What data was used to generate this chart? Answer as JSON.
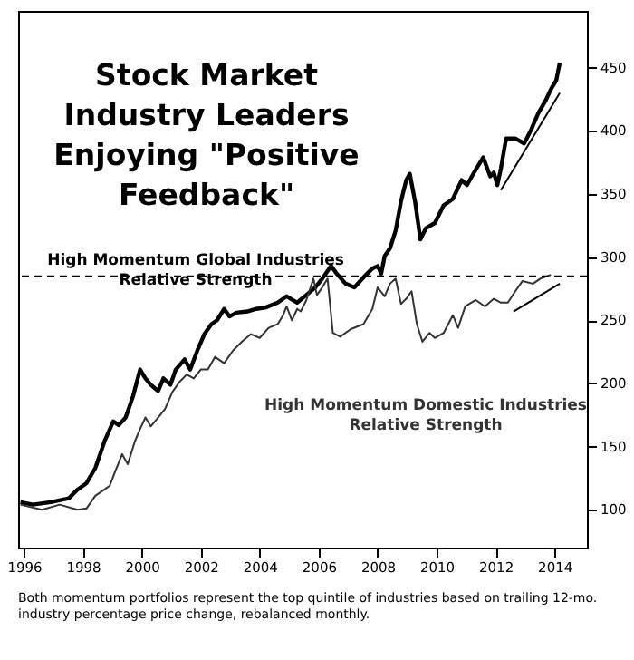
{
  "chart_data": {
    "type": "line",
    "title": "Stock Market\nIndustry Leaders\nEnjoying \"Positive\nFeedback\"",
    "annotations": [
      "Both momentum portfolios represent the top quintile of industries based on trailing 12-mo. industry percentage price change, rebalanced monthly."
    ],
    "xlim": [
      1995.8,
      2015.1
    ],
    "xticks": [
      1996,
      1998,
      2000,
      2002,
      2004,
      2006,
      2008,
      2010,
      2012,
      2014
    ],
    "ylim": [
      70,
      495
    ],
    "yticks": [
      100,
      150,
      200,
      250,
      300,
      350,
      400,
      450
    ],
    "grid": false,
    "marker": "none",
    "line_style": "solid",
    "ref_lines": [
      {
        "axis": "y",
        "value": 285,
        "color": "#000000",
        "line_style": "dashed"
      }
    ],
    "series": [
      {
        "name": "High Momentum Global Industries\nRelative Strength",
        "color": "#000000",
        "x": [
          1995.88,
          1996.3,
          1996.91,
          1997.52,
          1997.82,
          1998.12,
          1998.42,
          1998.73,
          1999.03,
          1999.21,
          1999.45,
          1999.7,
          1999.94,
          2000.12,
          2000.3,
          2000.55,
          2000.73,
          2000.97,
          2001.15,
          2001.45,
          2001.64,
          2001.88,
          2002.12,
          2002.36,
          2002.55,
          2002.79,
          2002.97,
          2003.21,
          2003.58,
          2003.88,
          2004.18,
          2004.61,
          2004.91,
          2005.27,
          2005.58,
          2005.88,
          2006.12,
          2006.42,
          2006.61,
          2006.91,
          2007.21,
          2007.52,
          2007.82,
          2008.0,
          2008.12,
          2008.24,
          2008.42,
          2008.61,
          2008.79,
          2008.97,
          2009.09,
          2009.27,
          2009.45,
          2009.64,
          2009.94,
          2010.24,
          2010.55,
          2010.85,
          2011.03,
          2011.27,
          2011.58,
          2011.82,
          2011.94,
          2012.06,
          2012.18,
          2012.36,
          2012.67,
          2012.97,
          2013.21,
          2013.45,
          2013.7,
          2013.88,
          2014.06,
          2014.18
        ],
        "values": [
          106,
          104,
          106,
          109,
          116,
          121,
          133,
          154,
          170,
          167,
          173,
          190,
          211,
          204,
          199,
          194,
          204,
          199,
          211,
          219,
          211,
          226,
          239,
          247,
          250,
          259,
          253,
          256,
          257,
          259,
          260,
          264,
          269,
          264,
          270,
          276,
          283,
          293,
          287,
          279,
          276,
          284,
          291,
          293,
          287,
          301,
          307,
          321,
          344,
          361,
          366,
          344,
          314,
          323,
          327,
          341,
          346,
          361,
          357,
          367,
          379,
          364,
          367,
          357,
          370,
          394,
          394,
          390,
          401,
          414,
          424,
          433,
          440,
          454
        ]
      },
      {
        "name": "High Momentum Domestic Industries\nRelative Strength",
        "color": "#333333",
        "x": [
          1995.88,
          1996.61,
          1997.21,
          1997.82,
          1998.12,
          1998.42,
          1998.73,
          1998.91,
          1999.09,
          1999.33,
          1999.52,
          1999.76,
          1999.94,
          2000.12,
          2000.3,
          2000.55,
          2000.79,
          2001.03,
          2001.27,
          2001.52,
          2001.76,
          2002.0,
          2002.24,
          2002.48,
          2002.79,
          2003.09,
          2003.39,
          2003.7,
          2004.0,
          2004.3,
          2004.61,
          2004.79,
          2004.91,
          2005.09,
          2005.27,
          2005.39,
          2005.58,
          2005.82,
          2005.94,
          2006.12,
          2006.3,
          2006.48,
          2006.73,
          2007.09,
          2007.52,
          2007.82,
          2008.0,
          2008.24,
          2008.42,
          2008.61,
          2008.79,
          2008.97,
          2009.15,
          2009.33,
          2009.52,
          2009.76,
          2009.94,
          2010.24,
          2010.55,
          2010.73,
          2010.97,
          2011.33,
          2011.64,
          2011.94,
          2012.18,
          2012.42,
          2012.67,
          2012.91,
          2013.27,
          2013.52,
          2013.88
        ],
        "values": [
          104,
          100,
          104,
          100,
          101,
          111,
          116,
          119,
          130,
          144,
          136,
          154,
          164,
          173,
          166,
          173,
          180,
          193,
          201,
          207,
          204,
          211,
          211,
          221,
          216,
          226,
          233,
          239,
          236,
          244,
          247,
          254,
          261,
          250,
          259,
          257,
          266,
          283,
          270,
          276,
          283,
          240,
          237,
          243,
          247,
          259,
          276,
          269,
          279,
          283,
          263,
          267,
          273,
          247,
          233,
          240,
          236,
          240,
          254,
          244,
          261,
          266,
          261,
          267,
          264,
          264,
          273,
          281,
          279,
          283,
          286
        ]
      },
      {
        "type": "line",
        "color": "#000000",
        "x": [
          2012.18,
          2014.18
        ],
        "values": [
          353,
          430
        ]
      },
      {
        "type": "line",
        "color": "#000000",
        "x": [
          2012.61,
          2014.18
        ],
        "values": [
          257,
          279
        ]
      }
    ]
  }
}
